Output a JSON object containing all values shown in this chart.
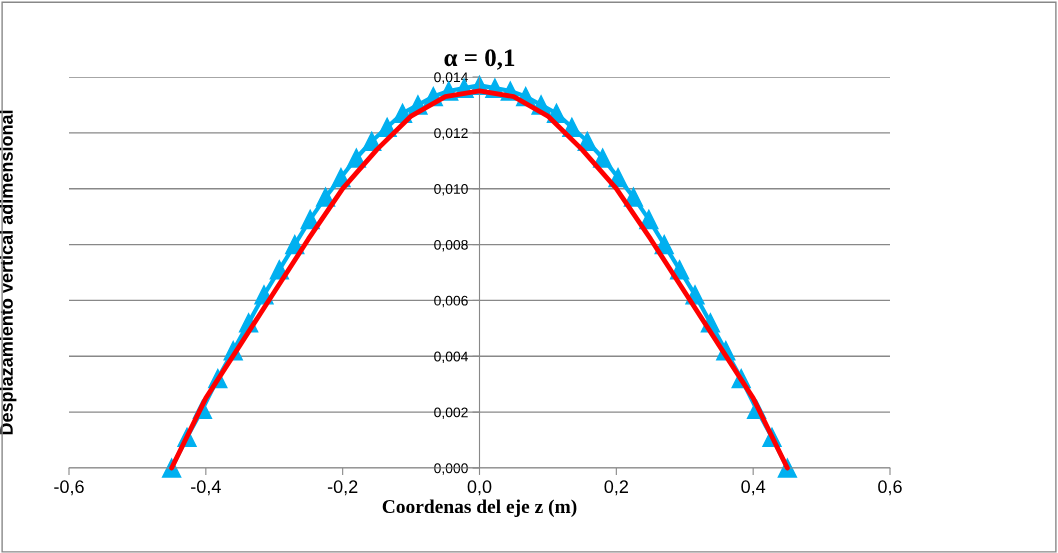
{
  "chart_data": {
    "type": "line",
    "title": "α = 0,1",
    "xlabel": "Coordenas del eje z (m)",
    "ylabel": "Desplazamiento vertical adimensional",
    "series": [
      {
        "color": "#00b0f0",
        "marker": "triangle",
        "x": [
          -0.45,
          -0.4275,
          -0.405,
          -0.3825,
          -0.36,
          -0.3375,
          -0.315,
          -0.2925,
          -0.27,
          -0.2475,
          -0.225,
          -0.2025,
          -0.18,
          -0.1575,
          -0.135,
          -0.1125,
          -0.09,
          -0.0675,
          -0.045,
          -0.0225,
          0,
          0.0225,
          0.045,
          0.0675,
          0.09,
          0.1125,
          0.135,
          0.1575,
          0.18,
          0.2025,
          0.225,
          0.2475,
          0.27,
          0.2925,
          0.315,
          0.3375,
          0.36,
          0.3825,
          0.405,
          0.4275,
          0.45
        ],
        "values": [
          0,
          0.0011,
          0.0021,
          0.0032,
          0.0042,
          0.0052,
          0.0062,
          0.0071,
          0.008,
          0.0089,
          0.0097,
          0.0104,
          0.0111,
          0.0117,
          0.0122,
          0.0127,
          0.013,
          0.0133,
          0.0135,
          0.0136,
          0.0137,
          0.0136,
          0.0135,
          0.0133,
          0.013,
          0.0127,
          0.0122,
          0.0117,
          0.0111,
          0.0104,
          0.0097,
          0.0089,
          0.008,
          0.0071,
          0.0062,
          0.0052,
          0.0042,
          0.0032,
          0.0021,
          0.0011,
          0
        ]
      },
      {
        "color": "#ff0000",
        "marker": "none",
        "x": [
          -0.45,
          -0.4,
          -0.35,
          -0.3,
          -0.25,
          -0.2,
          -0.15,
          -0.1,
          -0.05,
          0,
          0.05,
          0.1,
          0.15,
          0.2,
          0.25,
          0.3,
          0.35,
          0.4,
          0.45
        ],
        "values": [
          0,
          0.0025,
          0.0044,
          0.0063,
          0.0082,
          0.01,
          0.0114,
          0.0126,
          0.0133,
          0.0135,
          0.0133,
          0.0126,
          0.0114,
          0.01,
          0.0082,
          0.0063,
          0.0044,
          0.0025,
          0
        ]
      }
    ],
    "xlim": [
      -0.6,
      0.6
    ],
    "xticks": [
      {
        "value": -0.6,
        "label": "-0,6"
      },
      {
        "value": -0.4,
        "label": "-0,4"
      },
      {
        "value": -0.2,
        "label": "-0,2"
      },
      {
        "value": 0,
        "label": "0,0"
      },
      {
        "value": 0.2,
        "label": "0,2"
      },
      {
        "value": 0.4,
        "label": "0,4"
      },
      {
        "value": 0.6,
        "label": "0,6"
      }
    ],
    "ylim": [
      0,
      0.014
    ],
    "yticks": [
      {
        "value": 0,
        "label": "0,000"
      },
      {
        "value": 0.002,
        "label": "0,002"
      },
      {
        "value": 0.004,
        "label": "0,004"
      },
      {
        "value": 0.006,
        "label": "0,006"
      },
      {
        "value": 0.008,
        "label": "0,008"
      },
      {
        "value": 0.01,
        "label": "0,010"
      },
      {
        "value": 0.012,
        "label": "0,012"
      },
      {
        "value": 0.014,
        "label": "0,014"
      }
    ],
    "grid": "y",
    "line_style": "solid"
  }
}
